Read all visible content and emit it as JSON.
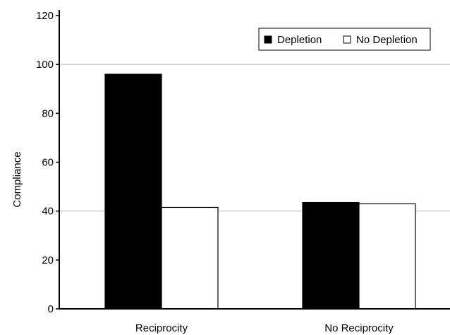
{
  "chart_data": {
    "type": "bar",
    "ylabel": "Compliance",
    "xlabel": "",
    "categories": [
      "Reciprocity",
      "No Reciprocity"
    ],
    "series": [
      {
        "name": "Depletion",
        "values": [
          96,
          43.5
        ],
        "color": "#000000"
      },
      {
        "name": "No Depletion",
        "values": [
          41.5,
          43
        ],
        "color": "#ffffff"
      }
    ],
    "ylim": [
      0,
      120
    ],
    "yticks": [
      0,
      20,
      40,
      60,
      80,
      100,
      120
    ],
    "grid": "horizontal at 40 and 100",
    "gridlines": [
      40,
      100
    ],
    "legend_position": "top-right"
  }
}
